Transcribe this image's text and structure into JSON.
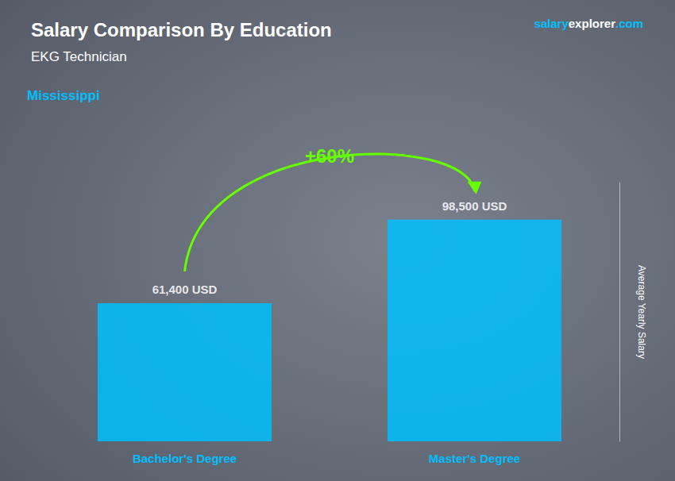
{
  "chart_data": {
    "type": "bar",
    "title": "Salary Comparison By Education",
    "subtitle": "EKG Technician",
    "annotations": [
      "Mississippi",
      "+60%",
      "salary",
      "explorer",
      ".com"
    ],
    "ylabel": "Average Yearly Salary",
    "categories": [
      "Bachelor's Degree",
      "Master's Degree"
    ],
    "values": [
      61400,
      98500
    ],
    "value_labels": [
      "61,400 USD",
      "98,500 USD"
    ],
    "data_labels": true,
    "color": "#00BFFF",
    "ylim": [
      0,
      115000
    ],
    "tick_labels": "x",
    "grid": false
  }
}
